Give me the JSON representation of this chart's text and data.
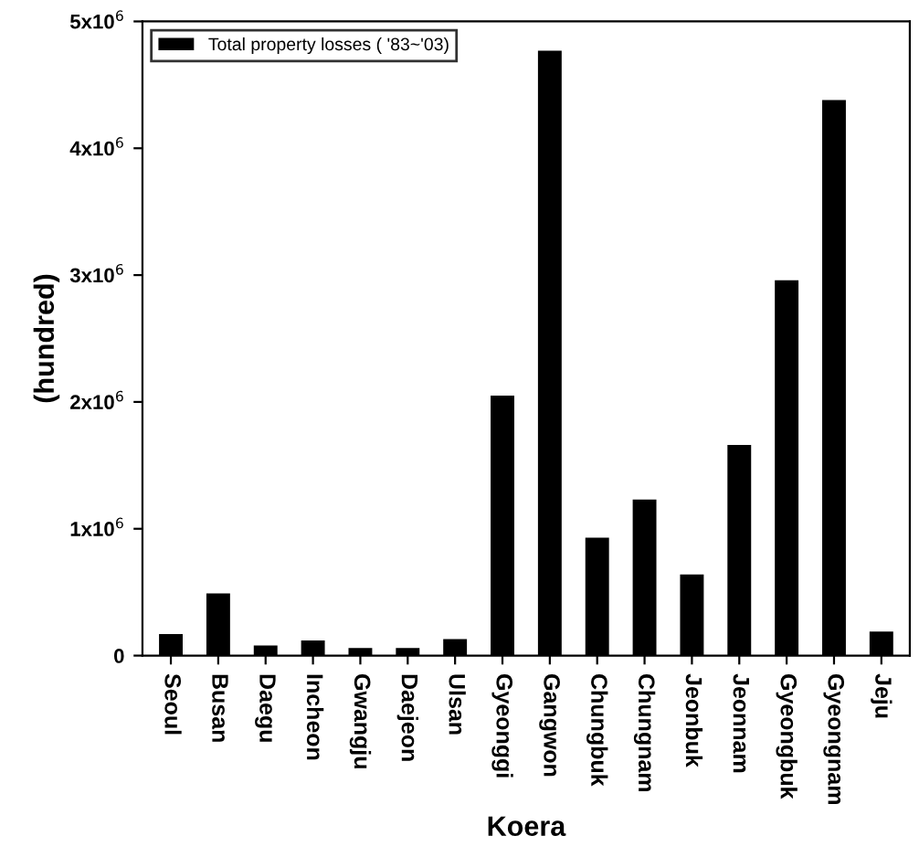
{
  "chart_data": {
    "type": "bar",
    "xlabel": "Koera",
    "ylabel": "(hundred)",
    "categories": [
      "Seoul",
      "Busan",
      "Daegu",
      "Incheon",
      "Gwangju",
      "Daejeon",
      "Ulsan",
      "Gyeonggi",
      "Gangwon",
      "Chungbuk",
      "Chungnam",
      "Jeonbuk",
      "Jeonnam",
      "Gyeongbuk",
      "Gyeongnam",
      "Jeju"
    ],
    "series": [
      {
        "name": "Total property losses ( '83~'03)",
        "color": "#000000",
        "values": [
          170000,
          490000,
          80000,
          120000,
          60000,
          60000,
          130000,
          2050000,
          4770000,
          930000,
          1230000,
          640000,
          1660000,
          2960000,
          4380000,
          190000
        ]
      }
    ],
    "ylim": [
      0,
      5000000
    ],
    "yticks": [
      0,
      {
        "value": 1000000,
        "label": "1x10$^{6}$"
      },
      {
        "value": 2000000,
        "label": "2x10$^{6}$"
      },
      {
        "value": 3000000,
        "label": "3x10$^{6}$"
      },
      {
        "value": 4000000,
        "label": "4x10$^{6}$"
      },
      {
        "value": 5000000,
        "label": "5x10$^{6}$"
      }
    ],
    "legend": "top left",
    "grid": false
  }
}
